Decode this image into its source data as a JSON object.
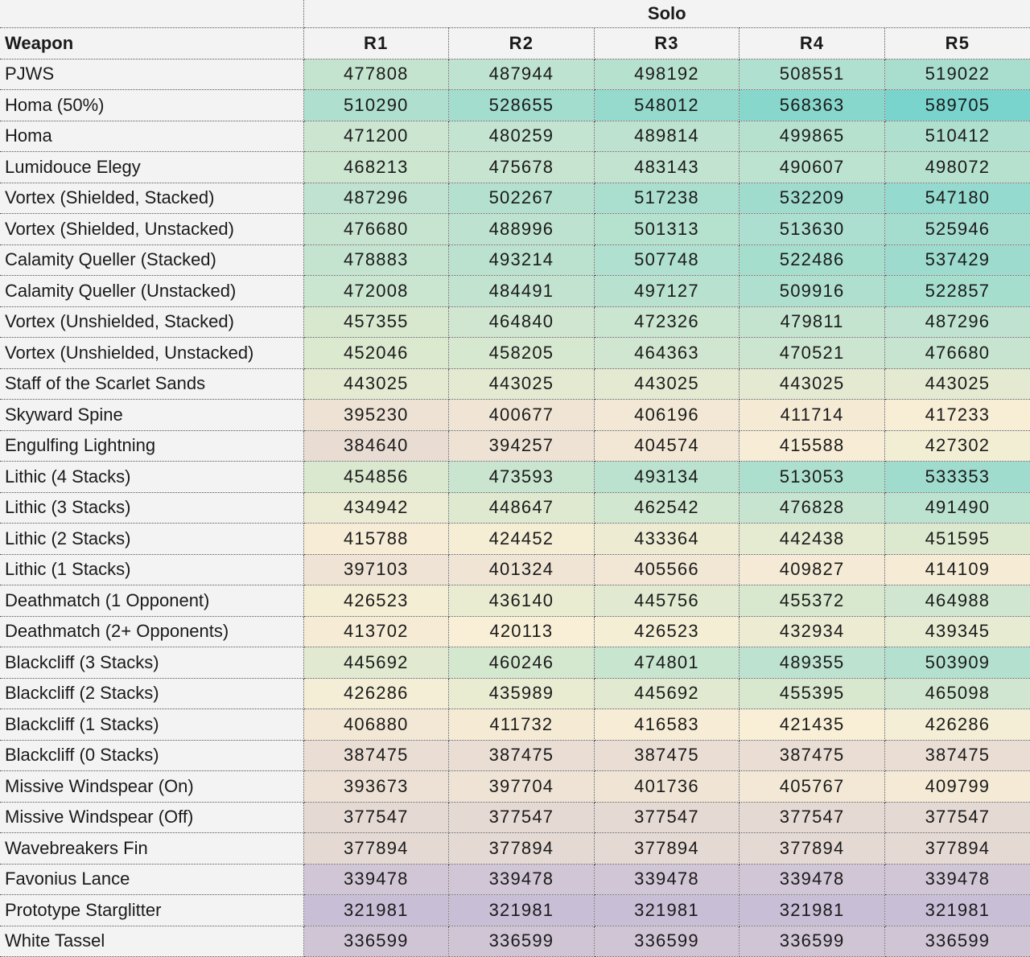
{
  "table": {
    "group_header": "Solo",
    "weapon_header": "Weapon",
    "rank_headers": [
      "R1",
      "R2",
      "R3",
      "R4",
      "R5"
    ],
    "rows": [
      {
        "name": "PJWS",
        "values": [
          477808,
          487944,
          498192,
          508551,
          519022
        ]
      },
      {
        "name": "Homa (50%)",
        "values": [
          510290,
          528655,
          548012,
          568363,
          589705
        ]
      },
      {
        "name": "Homa",
        "values": [
          471200,
          480259,
          489814,
          499865,
          510412
        ]
      },
      {
        "name": "Lumidouce Elegy",
        "values": [
          468213,
          475678,
          483143,
          490607,
          498072
        ]
      },
      {
        "name": "Vortex (Shielded, Stacked)",
        "values": [
          487296,
          502267,
          517238,
          532209,
          547180
        ]
      },
      {
        "name": "Vortex (Shielded, Unstacked)",
        "values": [
          476680,
          488996,
          501313,
          513630,
          525946
        ]
      },
      {
        "name": "Calamity Queller (Stacked)",
        "values": [
          478883,
          493214,
          507748,
          522486,
          537429
        ]
      },
      {
        "name": "Calamity Queller (Unstacked)",
        "values": [
          472008,
          484491,
          497127,
          509916,
          522857
        ]
      },
      {
        "name": "Vortex (Unshielded, Stacked)",
        "values": [
          457355,
          464840,
          472326,
          479811,
          487296
        ]
      },
      {
        "name": "Vortex (Unshielded, Unstacked)",
        "values": [
          452046,
          458205,
          464363,
          470521,
          476680
        ]
      },
      {
        "name": "Staff of the Scarlet Sands",
        "values": [
          443025,
          443025,
          443025,
          443025,
          443025
        ]
      },
      {
        "name": "Skyward Spine",
        "values": [
          395230,
          400677,
          406196,
          411714,
          417233
        ]
      },
      {
        "name": "Engulfing Lightning",
        "values": [
          384640,
          394257,
          404574,
          415588,
          427302
        ]
      },
      {
        "name": "Lithic (4 Stacks)",
        "values": [
          454856,
          473593,
          493134,
          513053,
          533353
        ]
      },
      {
        "name": "Lithic (3 Stacks)",
        "values": [
          434942,
          448647,
          462542,
          476828,
          491490
        ]
      },
      {
        "name": "Lithic (2 Stacks)",
        "values": [
          415788,
          424452,
          433364,
          442438,
          451595
        ]
      },
      {
        "name": "Lithic (1 Stacks)",
        "values": [
          397103,
          401324,
          405566,
          409827,
          414109
        ]
      },
      {
        "name": "Deathmatch (1 Opponent)",
        "values": [
          426523,
          436140,
          445756,
          455372,
          464988
        ]
      },
      {
        "name": "Deathmatch (2+ Opponents)",
        "values": [
          413702,
          420113,
          426523,
          432934,
          439345
        ]
      },
      {
        "name": "Blackcliff (3 Stacks)",
        "values": [
          445692,
          460246,
          474801,
          489355,
          503909
        ]
      },
      {
        "name": "Blackcliff (2 Stacks)",
        "values": [
          426286,
          435989,
          445692,
          455395,
          465098
        ]
      },
      {
        "name": "Blackcliff (1 Stacks)",
        "values": [
          406880,
          411732,
          416583,
          421435,
          426286
        ]
      },
      {
        "name": "Blackcliff (0 Stacks)",
        "values": [
          387475,
          387475,
          387475,
          387475,
          387475
        ]
      },
      {
        "name": "Missive Windspear (On)",
        "values": [
          393673,
          397704,
          401736,
          405767,
          409799
        ]
      },
      {
        "name": "Missive Windspear (Off)",
        "values": [
          377547,
          377547,
          377547,
          377547,
          377547
        ]
      },
      {
        "name": "Wavebreakers Fin",
        "values": [
          377894,
          377894,
          377894,
          377894,
          377894
        ]
      },
      {
        "name": "Favonius Lance",
        "values": [
          339478,
          339478,
          339478,
          339478,
          339478
        ]
      },
      {
        "name": "Prototype Starglitter",
        "values": [
          321981,
          321981,
          321981,
          321981,
          321981
        ]
      },
      {
        "name": "White Tassel",
        "values": [
          336599,
          336599,
          336599,
          336599,
          336599
        ]
      }
    ]
  },
  "colors": {
    "background": "#f3f3f3",
    "heat_scale": [
      {
        "value": 321981,
        "color": "#c8bed6"
      },
      {
        "value": 378000,
        "color": "#e5d9d3"
      },
      {
        "value": 420000,
        "color": "#f9efd6"
      },
      {
        "value": 450000,
        "color": "#dde9cf"
      },
      {
        "value": 478000,
        "color": "#c5e4d0"
      },
      {
        "value": 589705,
        "color": "#78d4cc"
      }
    ]
  }
}
